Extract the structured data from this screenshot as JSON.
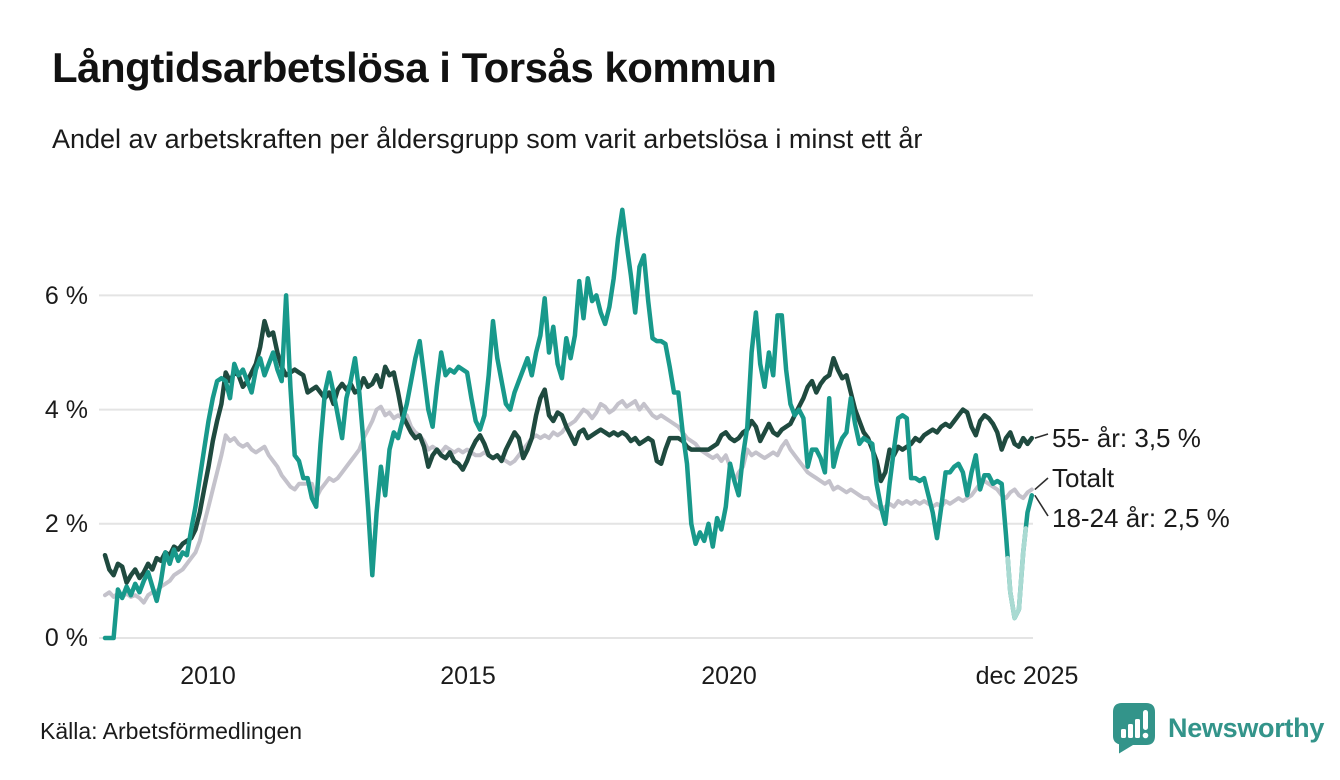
{
  "chart_data": {
    "type": "line",
    "title": "Långtidsarbetslösa i Torsås kommun",
    "subtitle": "Andel av arbetskraften per åldersgrupp som varit arbetslösa i minst ett år",
    "source": "Källa: Arbetsförmedlingen",
    "unit": "%",
    "x_start": 2008.0,
    "x_step": "monthly",
    "x_end_label": "dec 2025",
    "xlim": [
      2007.9,
      2026.0
    ],
    "ylim": [
      0,
      7.7
    ],
    "grid": "horizontal",
    "legend_position": "end-of-line-labels",
    "grid_color": "#e4e4e4",
    "y_ticks": [
      {
        "value": 6,
        "label": "6 %"
      },
      {
        "value": 4,
        "label": "4 %"
      },
      {
        "value": 2,
        "label": "2 %"
      },
      {
        "value": 0,
        "label": "0 %"
      }
    ],
    "x_ticks": [
      {
        "value": 2010,
        "label": "2010"
      },
      {
        "value": 2015,
        "label": "2015"
      },
      {
        "value": 2020,
        "label": "2020"
      },
      {
        "value": 2025.92,
        "label": "dec 2025"
      }
    ],
    "series": [
      {
        "name": "Totalt",
        "end_label": "Totalt",
        "color": "#c4c2cb",
        "stroke_width": 4,
        "last_value": 2.6,
        "values": [
          0.75,
          0.8,
          0.72,
          0.78,
          0.72,
          0.78,
          0.72,
          0.75,
          0.7,
          0.62,
          0.75,
          0.8,
          0.82,
          0.9,
          0.95,
          1.0,
          1.1,
          1.15,
          1.2,
          1.3,
          1.4,
          1.5,
          1.7,
          2.0,
          2.3,
          2.6,
          2.9,
          3.2,
          3.55,
          3.45,
          3.5,
          3.4,
          3.35,
          3.4,
          3.3,
          3.25,
          3.3,
          3.35,
          3.2,
          3.1,
          3.0,
          2.85,
          2.75,
          2.65,
          2.6,
          2.7,
          2.7,
          2.7,
          2.7,
          2.45,
          2.6,
          2.7,
          2.8,
          2.75,
          2.8,
          2.9,
          3.0,
          3.1,
          3.2,
          3.3,
          3.5,
          3.65,
          3.8,
          4.0,
          4.05,
          3.9,
          3.95,
          3.85,
          3.9,
          3.85,
          3.9,
          3.7,
          3.6,
          3.55,
          3.45,
          3.3,
          3.35,
          3.3,
          3.25,
          3.35,
          3.3,
          3.25,
          3.3,
          3.25,
          3.3,
          3.25,
          3.2,
          3.2,
          3.25,
          3.2,
          3.15,
          3.2,
          3.15,
          3.1,
          3.05,
          3.1,
          3.2,
          3.3,
          3.4,
          3.5,
          3.55,
          3.5,
          3.55,
          3.5,
          3.6,
          3.55,
          3.6,
          3.7,
          3.75,
          3.8,
          3.9,
          4.0,
          3.95,
          3.85,
          3.95,
          4.1,
          4.05,
          3.95,
          4.0,
          4.1,
          4.15,
          4.05,
          4.1,
          4.15,
          4.0,
          4.1,
          4.0,
          3.9,
          3.85,
          3.9,
          3.85,
          3.8,
          3.75,
          3.7,
          3.6,
          3.5,
          3.45,
          3.4,
          3.3,
          3.25,
          3.2,
          3.15,
          3.2,
          3.1,
          3.2,
          3.0,
          2.75,
          2.9,
          3.0,
          3.3,
          3.2,
          3.25,
          3.2,
          3.15,
          3.2,
          3.25,
          3.2,
          3.35,
          3.45,
          3.3,
          3.2,
          3.1,
          3.0,
          2.9,
          2.85,
          2.8,
          2.75,
          2.7,
          2.75,
          2.6,
          2.65,
          2.6,
          2.55,
          2.6,
          2.55,
          2.5,
          2.45,
          2.45,
          2.35,
          2.3,
          2.25,
          2.3,
          2.35,
          2.3,
          2.4,
          2.35,
          2.4,
          2.35,
          2.4,
          2.35,
          2.4,
          2.35,
          2.3,
          2.35,
          2.3,
          2.4,
          2.35,
          2.4,
          2.45,
          2.4,
          2.45,
          2.5,
          2.6,
          2.7,
          2.75,
          2.7,
          2.65,
          2.6,
          2.5,
          2.45,
          2.55,
          2.6,
          2.5,
          2.45,
          2.55,
          2.6
        ]
      },
      {
        "name": "55- år",
        "end_label": "55- år: 3,5 %",
        "color": "#1f4a3f",
        "stroke_width": 4.5,
        "last_value": 3.5,
        "values": [
          1.45,
          1.2,
          1.1,
          1.3,
          1.25,
          0.97,
          1.1,
          1.2,
          1.05,
          1.15,
          1.3,
          1.2,
          1.4,
          1.35,
          1.5,
          1.45,
          1.6,
          1.55,
          1.65,
          1.7,
          1.75,
          1.9,
          2.2,
          2.6,
          3.0,
          3.45,
          3.8,
          4.1,
          4.65,
          4.5,
          4.65,
          4.6,
          4.4,
          4.5,
          4.65,
          4.8,
          5.1,
          5.55,
          5.3,
          5.35,
          5.0,
          4.75,
          4.6,
          4.65,
          4.7,
          4.65,
          4.6,
          4.3,
          4.35,
          4.4,
          4.3,
          4.2,
          4.3,
          4.1,
          4.35,
          4.45,
          4.35,
          4.45,
          4.3,
          4.35,
          4.55,
          4.4,
          4.45,
          4.6,
          4.4,
          4.75,
          4.6,
          4.65,
          4.3,
          3.9,
          3.75,
          3.6,
          3.5,
          3.55,
          3.35,
          3.0,
          3.2,
          3.3,
          3.2,
          3.15,
          3.25,
          3.1,
          3.05,
          2.95,
          3.1,
          3.3,
          3.45,
          3.55,
          3.4,
          3.2,
          3.15,
          3.2,
          3.1,
          3.3,
          3.45,
          3.6,
          3.5,
          3.15,
          3.3,
          3.5,
          3.9,
          4.2,
          4.35,
          3.9,
          3.8,
          3.95,
          3.9,
          3.7,
          3.55,
          3.4,
          3.6,
          3.65,
          3.5,
          3.55,
          3.6,
          3.65,
          3.6,
          3.55,
          3.6,
          3.55,
          3.6,
          3.55,
          3.45,
          3.5,
          3.4,
          3.45,
          3.5,
          3.45,
          3.1,
          3.05,
          3.3,
          3.5,
          3.5,
          3.5,
          3.45,
          3.35,
          3.3,
          3.3,
          3.3,
          3.3,
          3.3,
          3.35,
          3.4,
          3.55,
          3.6,
          3.5,
          3.45,
          3.5,
          3.6,
          3.65,
          3.8,
          3.7,
          3.45,
          3.6,
          3.75,
          3.6,
          3.55,
          3.65,
          3.7,
          3.75,
          3.9,
          4.05,
          4.2,
          4.4,
          4.5,
          4.3,
          4.45,
          4.55,
          4.6,
          4.9,
          4.7,
          4.55,
          4.6,
          4.3,
          4.0,
          3.8,
          3.6,
          3.5,
          3.3,
          3.1,
          2.75,
          2.9,
          3.3,
          3.2,
          3.35,
          3.3,
          3.35,
          3.4,
          3.5,
          3.45,
          3.55,
          3.6,
          3.65,
          3.6,
          3.7,
          3.75,
          3.7,
          3.8,
          3.9,
          4.0,
          3.95,
          3.7,
          3.55,
          3.8,
          3.9,
          3.85,
          3.75,
          3.6,
          3.3,
          3.5,
          3.6,
          3.4,
          3.35,
          3.5,
          3.4,
          3.5
        ]
      },
      {
        "name": "18-24 år",
        "end_label": "18-24 år: 2,5 %",
        "color": "#18998b",
        "light_color": "#a9dad2",
        "light_range": [
          2025.45,
          2025.8
        ],
        "stroke_width": 4.5,
        "last_value": 2.5,
        "values": [
          0.0,
          0.0,
          0.0,
          0.85,
          0.7,
          0.9,
          0.75,
          0.95,
          0.8,
          1.0,
          1.15,
          0.9,
          0.65,
          1.0,
          1.5,
          1.3,
          1.55,
          1.35,
          1.5,
          1.45,
          1.9,
          2.3,
          2.8,
          3.3,
          3.8,
          4.2,
          4.5,
          4.55,
          4.5,
          4.2,
          4.8,
          4.6,
          4.7,
          4.5,
          4.3,
          4.7,
          4.9,
          4.6,
          4.8,
          5.0,
          4.7,
          4.5,
          6.0,
          4.4,
          3.2,
          3.1,
          2.8,
          2.8,
          2.45,
          2.3,
          3.4,
          4.3,
          4.65,
          4.3,
          3.9,
          3.5,
          4.2,
          4.5,
          4.9,
          4.3,
          3.4,
          2.3,
          1.1,
          2.2,
          3.0,
          2.5,
          3.3,
          3.6,
          3.5,
          3.8,
          4.1,
          4.5,
          4.9,
          5.2,
          4.6,
          4.0,
          3.7,
          4.4,
          5.0,
          4.6,
          4.7,
          4.65,
          4.75,
          4.7,
          4.65,
          4.2,
          3.8,
          3.65,
          3.9,
          4.6,
          5.55,
          4.9,
          4.5,
          4.1,
          4.0,
          4.3,
          4.5,
          4.7,
          4.9,
          4.6,
          5.0,
          5.3,
          5.95,
          5.0,
          5.45,
          4.8,
          4.55,
          5.25,
          4.9,
          5.3,
          6.25,
          5.6,
          6.3,
          5.9,
          6.0,
          5.7,
          5.5,
          5.8,
          6.3,
          7.0,
          7.5,
          6.9,
          6.35,
          5.7,
          6.5,
          6.7,
          5.9,
          5.25,
          5.2,
          5.2,
          5.15,
          4.75,
          4.3,
          4.3,
          3.6,
          3.05,
          2.0,
          1.65,
          1.85,
          1.7,
          2.0,
          1.6,
          2.1,
          1.9,
          2.3,
          3.05,
          2.75,
          2.5,
          3.2,
          3.7,
          5.0,
          5.7,
          4.8,
          4.4,
          5.0,
          4.6,
          5.65,
          5.65,
          4.7,
          4.1,
          3.9,
          4.0,
          3.85,
          3.0,
          3.3,
          3.3,
          3.15,
          2.9,
          4.2,
          3.0,
          3.3,
          3.5,
          3.6,
          4.2,
          3.75,
          3.4,
          3.5,
          3.45,
          3.4,
          2.7,
          2.3,
          2.0,
          2.7,
          3.3,
          3.85,
          3.9,
          3.85,
          2.8,
          2.8,
          2.75,
          2.8,
          2.5,
          2.2,
          1.75,
          2.3,
          2.9,
          2.9,
          3.0,
          3.05,
          2.9,
          2.5,
          2.9,
          3.2,
          2.6,
          2.85,
          2.85,
          2.7,
          2.75,
          2.7,
          1.8,
          0.8,
          0.35,
          0.5,
          1.5,
          2.2,
          2.5
        ]
      }
    ]
  },
  "branding": {
    "label": "Newsworthy",
    "color": "#33948a"
  }
}
